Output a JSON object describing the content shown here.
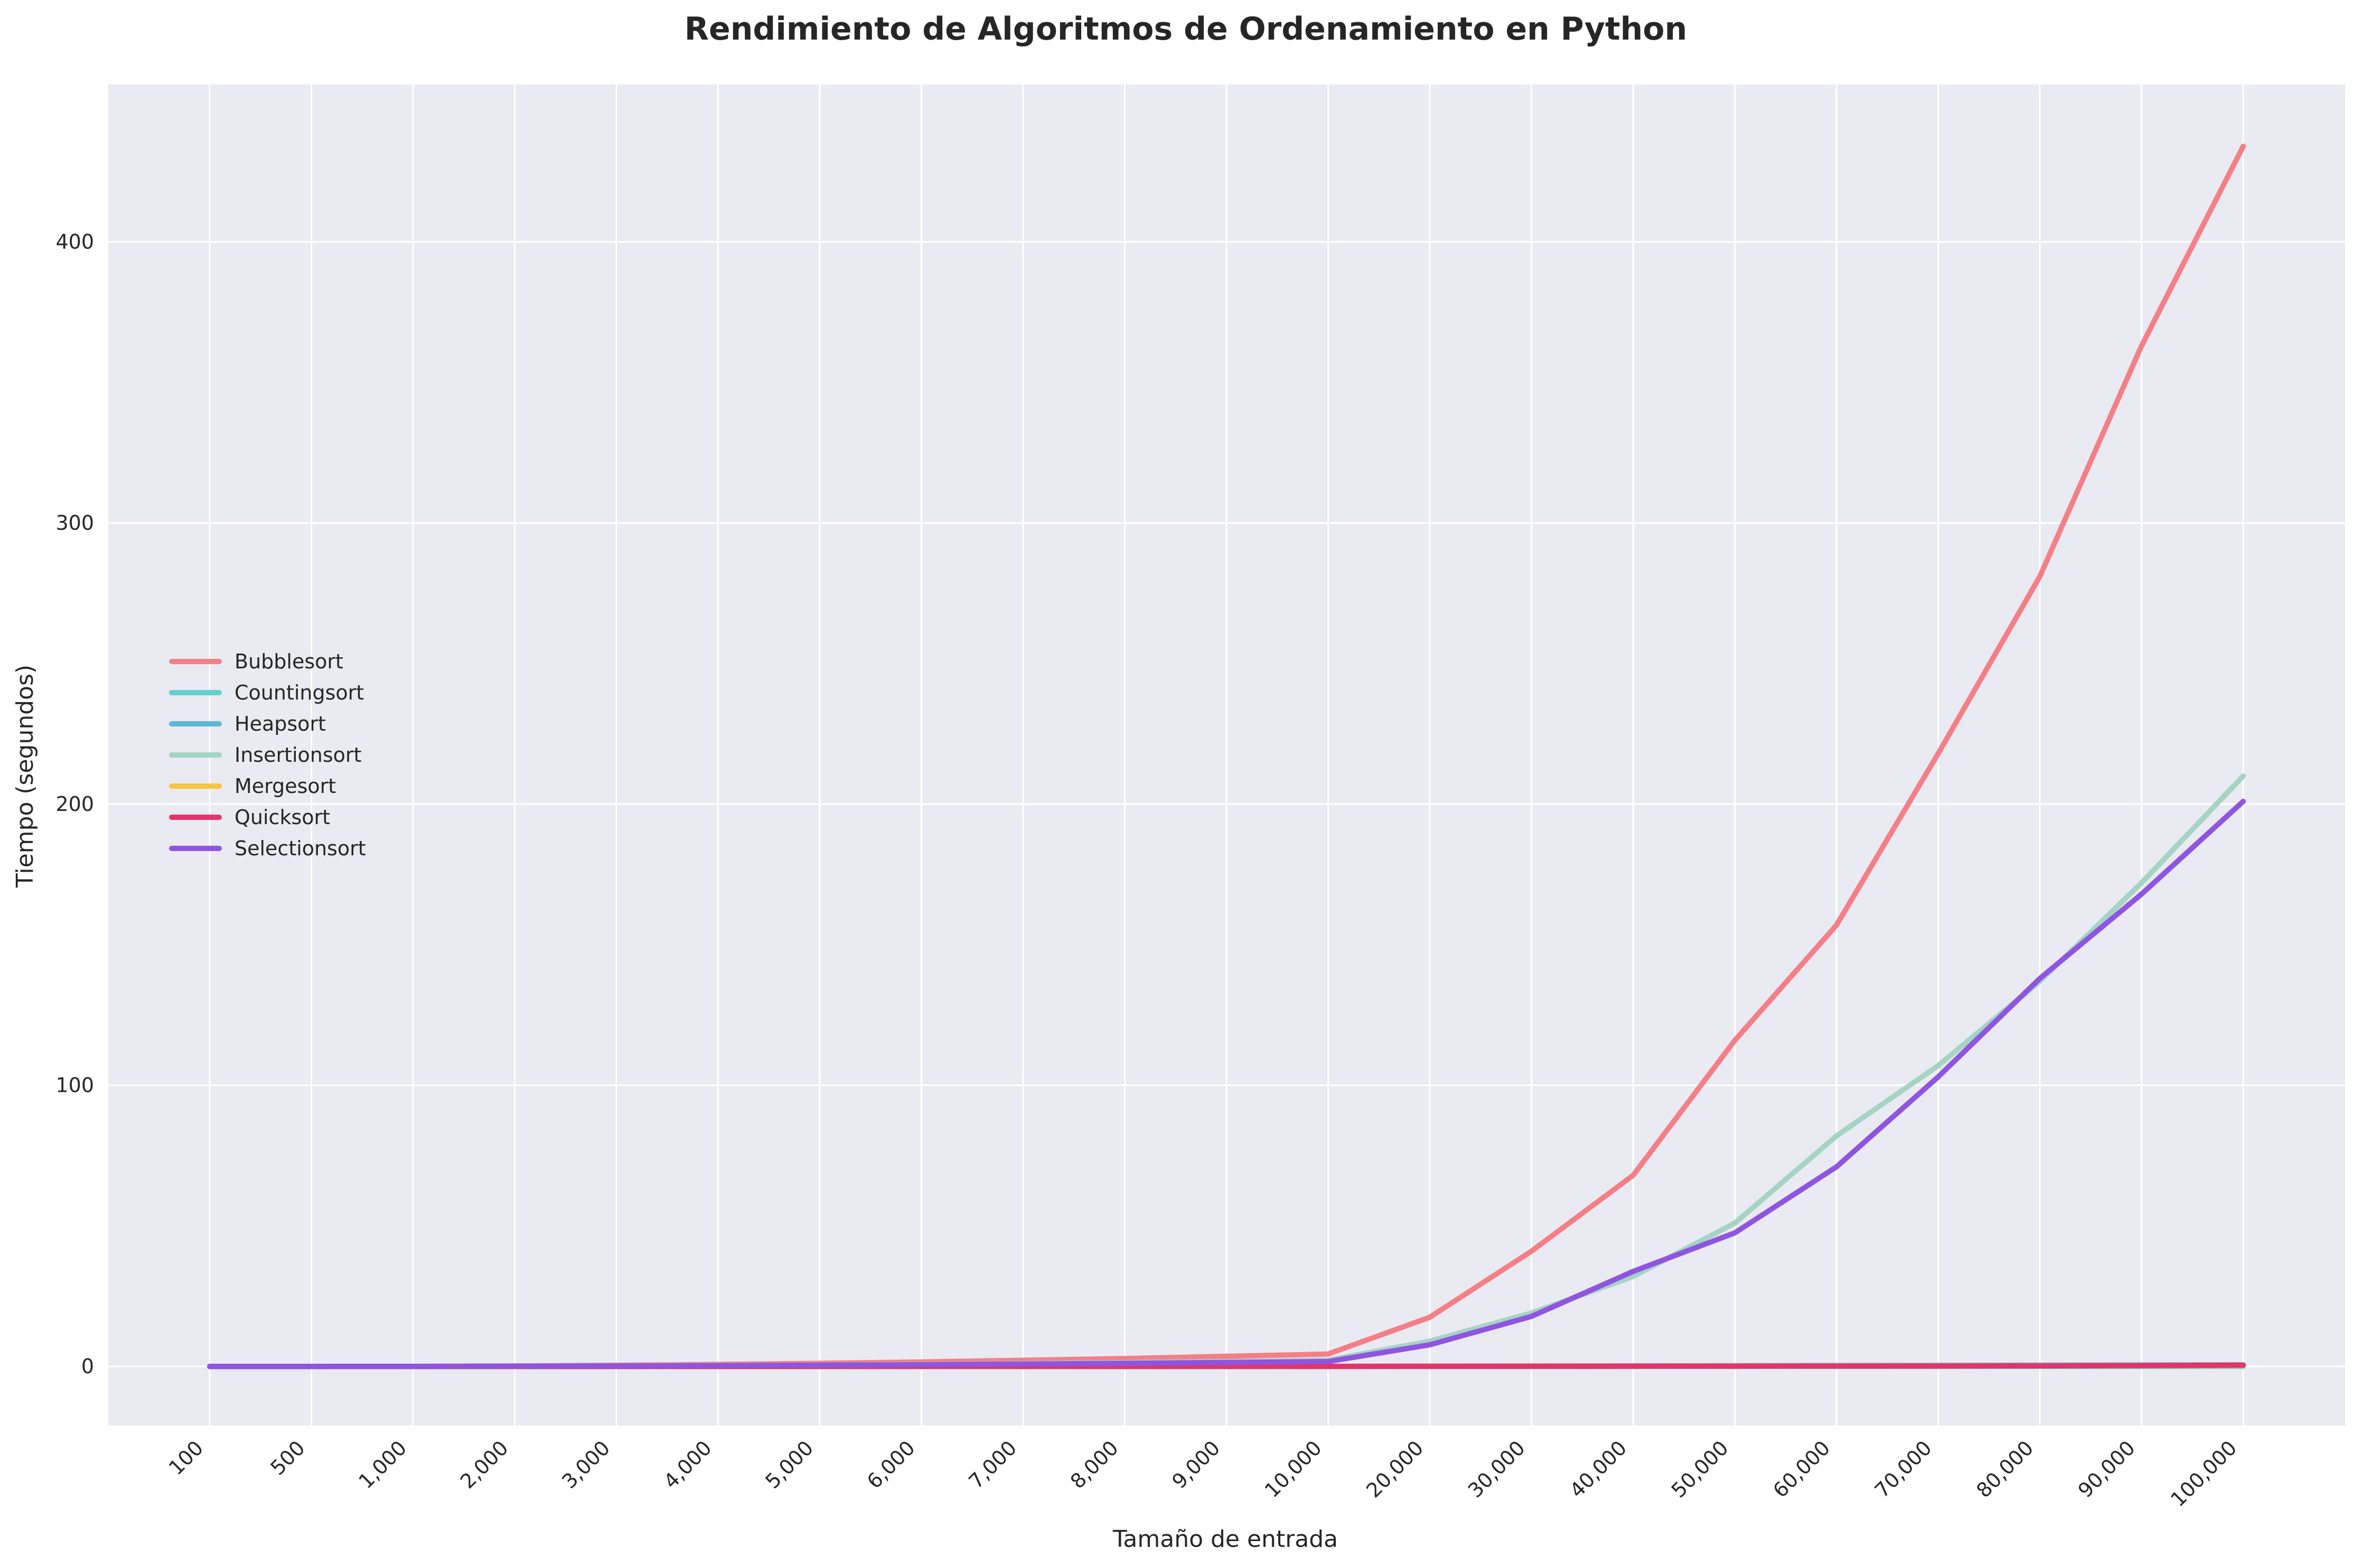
{
  "chart_data": {
    "type": "line",
    "title": "Rendimiento de Algoritmos de Ordenamiento en Python",
    "xlabel": "Tamaño de entrada",
    "ylabel": "Tiempo (segundos)",
    "x": [
      "100",
      "500",
      "1,000",
      "2,000",
      "3,000",
      "4,000",
      "5,000",
      "6,000",
      "7,000",
      "8,000",
      "9,000",
      "10,000",
      "20,000",
      "30,000",
      "40,000",
      "50,000",
      "60,000",
      "70,000",
      "80,000",
      "90,000",
      "100,000"
    ],
    "x_scale": "categorical",
    "ylim": [
      -21,
      456
    ],
    "yticks": [
      0,
      100,
      200,
      300,
      400
    ],
    "grid": true,
    "legend_position": "center-left",
    "series": [
      {
        "name": "Bubblesort",
        "color": "#f47f86",
        "values": [
          0.0,
          0.01,
          0.04,
          0.17,
          0.4,
          0.7,
          1.1,
          1.6,
          2.2,
          2.8,
          3.6,
          4.4,
          17.5,
          41.0,
          68.0,
          116.0,
          157.0,
          218.0,
          281.0,
          363.0,
          434.0
        ]
      },
      {
        "name": "Countingsort",
        "color": "#63d0cd",
        "values": [
          0.0,
          0.0,
          0.0,
          0.0,
          0.0,
          0.0,
          0.0,
          0.0,
          0.0,
          0.0,
          0.0,
          0.0,
          0.01,
          0.01,
          0.01,
          0.01,
          0.02,
          0.02,
          0.02,
          0.02,
          0.03
        ]
      },
      {
        "name": "Heapsort",
        "color": "#5cb7d8",
        "values": [
          0.0,
          0.0,
          0.0,
          0.01,
          0.01,
          0.02,
          0.02,
          0.03,
          0.03,
          0.04,
          0.04,
          0.05,
          0.1,
          0.15,
          0.2,
          0.26,
          0.32,
          0.38,
          0.44,
          0.5,
          0.56
        ]
      },
      {
        "name": "Insertionsort",
        "color": "#a5d4c4",
        "values": [
          0.0,
          0.0,
          0.02,
          0.08,
          0.19,
          0.33,
          0.5,
          0.75,
          1.0,
          1.35,
          1.75,
          2.2,
          9.0,
          19.0,
          32.0,
          51.0,
          82.0,
          107.0,
          137.0,
          172.0,
          210.0
        ]
      },
      {
        "name": "Mergesort",
        "color": "#f6c543",
        "values": [
          0.0,
          0.0,
          0.0,
          0.0,
          0.01,
          0.01,
          0.01,
          0.01,
          0.02,
          0.02,
          0.02,
          0.02,
          0.05,
          0.08,
          0.11,
          0.14,
          0.17,
          0.2,
          0.23,
          0.26,
          0.29
        ]
      },
      {
        "name": "Quicksort",
        "color": "#e6336b",
        "values": [
          0.0,
          0.0,
          0.0,
          0.0,
          0.0,
          0.0,
          0.01,
          0.01,
          0.01,
          0.01,
          0.01,
          0.01,
          0.03,
          0.05,
          0.07,
          0.09,
          0.12,
          0.15,
          0.2,
          0.3,
          0.45
        ]
      },
      {
        "name": "Selectionsort",
        "color": "#8f55e0",
        "values": [
          0.0,
          0.0,
          0.02,
          0.07,
          0.16,
          0.28,
          0.44,
          0.62,
          0.85,
          1.1,
          1.4,
          1.75,
          7.7,
          17.8,
          33.8,
          47.5,
          71.0,
          103.0,
          138.0,
          168.0,
          201.0
        ]
      }
    ]
  }
}
